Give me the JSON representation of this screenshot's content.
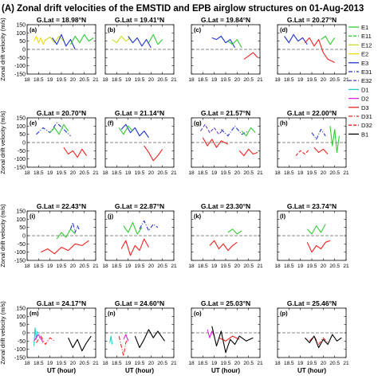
{
  "figure": {
    "title": "(A) Zonal drift velocities of the EMSTID and EPB airglow structures on 01-Aug-2013",
    "ylabel": "Zonal drift velocity (m/s)",
    "xlabel": "UT (hour)"
  },
  "legend": {
    "entries": [
      {
        "label": "E1",
        "color": "#33cc33",
        "dash": "solid"
      },
      {
        "label": "E11",
        "color": "#33cc33",
        "dash": "dash"
      },
      {
        "label": "E12",
        "color": "#ccdd22",
        "dash": "solid"
      },
      {
        "label": "E2",
        "color": "#eedd00",
        "dash": "solid"
      },
      {
        "label": "E3",
        "color": "#2233cc",
        "dash": "solid"
      },
      {
        "label": "E31",
        "color": "#2233cc",
        "dash": "dashdot"
      },
      {
        "label": "E32",
        "color": "#6644cc",
        "dash": "dash"
      },
      {
        "label": "D1",
        "color": "#22cccc",
        "dash": "solid"
      },
      {
        "label": "D2",
        "color": "#dd22dd",
        "dash": "solid"
      },
      {
        "label": "D3",
        "color": "#ee2222",
        "dash": "solid"
      },
      {
        "label": "D31",
        "color": "#ee2222",
        "dash": "dashdot"
      },
      {
        "label": "D32",
        "color": "#ee2222",
        "dash": "dash"
      },
      {
        "label": "B1",
        "color": "#000000",
        "dash": "solid"
      }
    ]
  },
  "chart_data": {
    "type": "line",
    "xlim": [
      18,
      21
    ],
    "ylim": [
      -150,
      150
    ],
    "xticks": [
      "18",
      "18.5",
      "19",
      "19.5",
      "20",
      "20.5",
      "21"
    ],
    "yticks": [
      "-150",
      "-100",
      "-50",
      "0",
      "50",
      "100",
      "150"
    ],
    "zero_line": "dashed",
    "panels": [
      {
        "tag": "(a)",
        "glat": "G.Lat = 18.98°N",
        "series": [
          {
            "name": "E2",
            "x": [
              18.3,
              18.4,
              18.5,
              18.6,
              18.7,
              18.8
            ],
            "y": [
              50,
              80,
              40,
              70,
              30,
              60
            ]
          },
          {
            "name": "E12",
            "x": [
              18.8,
              19.0,
              19.2,
              19.4,
              19.6
            ],
            "y": [
              55,
              75,
              40,
              80,
              50
            ]
          },
          {
            "name": "E3",
            "x": [
              19.1,
              19.3,
              19.5,
              19.7,
              19.9,
              20.1
            ],
            "y": [
              70,
              30,
              90,
              20,
              60,
              0
            ]
          },
          {
            "name": "E1",
            "x": [
              19.9,
              20.1,
              20.3,
              20.5,
              20.7,
              20.9
            ],
            "y": [
              30,
              80,
              40,
              90,
              50,
              70
            ]
          }
        ]
      },
      {
        "tag": "(b)",
        "glat": "G.Lat = 19.41°N",
        "series": [
          {
            "name": "E12",
            "x": [
              18.3,
              18.5,
              18.7,
              18.9,
              19.1
            ],
            "y": [
              60,
              40,
              80,
              50,
              70
            ]
          },
          {
            "name": "E3",
            "x": [
              19.0,
              19.2,
              19.4,
              19.6,
              19.8,
              20.0
            ],
            "y": [
              80,
              40,
              70,
              20,
              60,
              10
            ]
          },
          {
            "name": "E1",
            "x": [
              19.9,
              20.1,
              20.3,
              20.5
            ],
            "y": [
              40,
              90,
              30,
              60
            ]
          }
        ]
      },
      {
        "tag": "(c)",
        "glat": "G.Lat = 19.84°N",
        "series": [
          {
            "name": "E3",
            "x": [
              18.9,
              19.1,
              19.3,
              19.5,
              19.7,
              19.9
            ],
            "y": [
              70,
              60,
              80,
              40,
              60,
              10
            ]
          },
          {
            "name": "E1",
            "x": [
              19.6,
              19.8,
              20.0,
              20.2
            ],
            "y": [
              50,
              30,
              60,
              10
            ]
          },
          {
            "name": "D3",
            "x": [
              20.3,
              20.5,
              20.7,
              20.9
            ],
            "y": [
              -60,
              -40,
              -20,
              -50
            ]
          }
        ]
      },
      {
        "tag": "(d)",
        "glat": "G.Lat = 20.27°N",
        "series": [
          {
            "name": "E3",
            "x": [
              18.3,
              18.5,
              18.7,
              18.9,
              19.1,
              19.3
            ],
            "y": [
              80,
              40,
              90,
              50,
              70,
              30
            ]
          },
          {
            "name": "D3",
            "x": [
              19.2,
              19.4,
              19.6,
              19.8,
              20.0,
              20.2,
              20.5
            ],
            "y": [
              40,
              70,
              20,
              60,
              -20,
              -60,
              -80
            ]
          },
          {
            "name": "E1",
            "x": [
              19.9,
              20.1,
              20.3,
              20.5
            ],
            "y": [
              60,
              80,
              30,
              70
            ]
          }
        ]
      },
      {
        "tag": "(e)",
        "glat": "G.Lat = 20.70°N",
        "series": [
          {
            "name": "E31",
            "x": [
              18.4,
              18.7,
              19.0,
              19.3,
              19.6,
              19.9
            ],
            "y": [
              50,
              90,
              60,
              120,
              80,
              40
            ]
          },
          {
            "name": "E1",
            "x": [
              19.0,
              19.2,
              19.4,
              19.6,
              19.8
            ],
            "y": [
              60,
              90,
              50,
              110,
              70
            ]
          },
          {
            "name": "D3",
            "x": [
              19.6,
              19.8,
              20.0,
              20.2,
              20.4,
              20.6
            ],
            "y": [
              -30,
              -70,
              -50,
              -90,
              -40,
              -80
            ]
          }
        ]
      },
      {
        "tag": "(f)",
        "glat": "G.Lat = 21.14°N",
        "series": [
          {
            "name": "E3",
            "x": [
              18.7,
              18.9,
              19.1,
              19.3,
              19.5,
              19.7,
              19.9
            ],
            "y": [
              80,
              110,
              60,
              90,
              40,
              70,
              30
            ]
          },
          {
            "name": "E1",
            "x": [
              18.6,
              18.8,
              19.0,
              19.2
            ],
            "y": [
              90,
              50,
              100,
              70
            ]
          },
          {
            "name": "D3",
            "x": [
              19.7,
              19.9,
              20.1,
              20.3,
              20.5
            ],
            "y": [
              -20,
              -60,
              -110,
              -80,
              -40
            ]
          }
        ]
      },
      {
        "tag": "(g)",
        "glat": "G.Lat = 21.57°N",
        "series": [
          {
            "name": "E32",
            "x": [
              18.4,
              18.6,
              18.8,
              19.0,
              19.2,
              19.4
            ],
            "y": [
              70,
              110,
              60,
              90,
              50,
              80
            ]
          },
          {
            "name": "E31",
            "x": [
              19.3,
              19.6,
              19.9,
              20.2,
              20.5
            ],
            "y": [
              80,
              40,
              100,
              50,
              70
            ]
          },
          {
            "name": "D3",
            "x": [
              18.5,
              18.7,
              18.9,
              19.1,
              19.3,
              19.6
            ],
            "y": [
              30,
              -20,
              20,
              -30,
              10,
              -10
            ]
          },
          {
            "name": "E1",
            "x": [
              20.2,
              20.4,
              20.6,
              20.8
            ],
            "y": [
              70,
              40,
              90,
              60
            ]
          },
          {
            "name": "D3",
            "x": [
              20.1,
              20.3,
              20.5,
              20.7,
              20.9
            ],
            "y": [
              -50,
              -80,
              -40,
              -70,
              -60
            ]
          }
        ]
      },
      {
        "tag": "(h)",
        "glat": "G.Lat = 22.00°N",
        "series": [
          {
            "name": "E31",
            "x": [
              19.5,
              19.7,
              19.9,
              20.1
            ],
            "y": [
              60,
              20,
              80,
              40
            ]
          },
          {
            "name": "D32",
            "x": [
              18.8,
              19.0,
              19.2,
              19.4
            ],
            "y": [
              -80,
              -50,
              -70,
              -40
            ]
          },
          {
            "name": "D3",
            "x": [
              19.6,
              19.8,
              20.0,
              20.2
            ],
            "y": [
              -30,
              -60,
              -40,
              -70
            ]
          },
          {
            "name": "E1",
            "x": [
              20.3,
              20.4,
              20.5,
              20.6,
              20.7
            ],
            "y": [
              100,
              -20,
              80,
              -60,
              40
            ]
          }
        ]
      },
      {
        "tag": "(i)",
        "glat": "G.Lat = 22.43°N",
        "series": [
          {
            "name": "E1",
            "x": [
              19.3,
              19.5,
              19.7,
              19.9,
              20.1
            ],
            "y": [
              -20,
              20,
              -10,
              40,
              10
            ]
          },
          {
            "name": "E31",
            "x": [
              19.9,
              20.0,
              20.1,
              20.2,
              20.3
            ],
            "y": [
              40,
              80,
              20,
              60,
              30
            ]
          },
          {
            "name": "D3",
            "x": [
              18.6,
              18.9,
              19.2,
              19.5,
              19.8,
              20.1,
              20.4,
              20.7
            ],
            "y": [
              -100,
              -80,
              -110,
              -70,
              -90,
              -50,
              -60,
              -30
            ]
          }
        ]
      },
      {
        "tag": "(j)",
        "glat": "G.Lat = 22.87°N",
        "series": [
          {
            "name": "E1",
            "x": [
              18.8,
              19.0,
              19.2,
              19.4,
              19.6
            ],
            "y": [
              60,
              20,
              80,
              10,
              50
            ]
          },
          {
            "name": "E31",
            "x": [
              19.5,
              19.7,
              19.9,
              20.1,
              20.3
            ],
            "y": [
              40,
              90,
              30,
              70,
              50
            ]
          },
          {
            "name": "D3",
            "x": [
              18.7,
              18.9,
              19.1,
              19.3,
              19.5,
              19.7,
              19.9
            ],
            "y": [
              -80,
              -30,
              -120,
              -60,
              -90,
              -20,
              -70
            ]
          }
        ]
      },
      {
        "tag": "(k)",
        "glat": "G.Lat = 23.30°N",
        "series": [
          {
            "name": "E1",
            "x": [
              19.6,
              19.8,
              20.0,
              20.2
            ],
            "y": [
              20,
              40,
              10,
              30
            ]
          },
          {
            "name": "D3",
            "x": [
              18.8,
              19.0,
              19.2,
              19.4,
              19.6,
              19.8,
              20.0
            ],
            "y": [
              -60,
              -30,
              -80,
              -50,
              -90,
              -60,
              -40
            ]
          }
        ]
      },
      {
        "tag": "(l)",
        "glat": "G.Lat = 23.74°N",
        "series": [
          {
            "name": "E1",
            "x": [
              19.3,
              19.5,
              19.7,
              19.9,
              20.1
            ],
            "y": [
              40,
              10,
              60,
              20,
              70
            ]
          },
          {
            "name": "D3",
            "x": [
              19.3,
              19.5,
              19.7,
              19.9,
              20.1,
              20.3
            ],
            "y": [
              -40,
              -100,
              -60,
              -80,
              -40,
              -30
            ]
          }
        ]
      },
      {
        "tag": "(m)",
        "glat": "G.Lat = 24.17°N",
        "series": [
          {
            "name": "D1",
            "x": [
              18.3,
              18.35,
              18.4,
              18.45
            ],
            "y": [
              -80,
              30,
              -40,
              10
            ]
          },
          {
            "name": "D31",
            "x": [
              18.4,
              18.6,
              18.8,
              19.0,
              19.2
            ],
            "y": [
              -60,
              -20,
              -70,
              -30,
              -50
            ]
          },
          {
            "name": "D2",
            "x": [
              18.3,
              18.5,
              18.7
            ],
            "y": [
              -50,
              -10,
              -60
            ]
          },
          {
            "name": "B1",
            "x": [
              19.8,
              20.0,
              20.2,
              20.4,
              20.6,
              20.8
            ],
            "y": [
              -30,
              -90,
              -40,
              -110,
              -60,
              -20
            ]
          }
        ]
      },
      {
        "tag": "(n)",
        "glat": "G.Lat = 24.60°N",
        "series": [
          {
            "name": "D1",
            "x": [
              18.2,
              18.25,
              18.3
            ],
            "y": [
              -60,
              -20,
              -70
            ]
          },
          {
            "name": "D31",
            "x": [
              18.6,
              18.7,
              18.8,
              18.9,
              19.0
            ],
            "y": [
              -20,
              -80,
              -140,
              -60,
              -30
            ]
          },
          {
            "name": "D2",
            "x": [
              18.8,
              18.9,
              19.0
            ],
            "y": [
              -40,
              -10,
              -50
            ]
          },
          {
            "name": "B1",
            "x": [
              19.3,
              19.5,
              19.7,
              19.9,
              20.1,
              20.3,
              20.6
            ],
            "y": [
              -20,
              -90,
              -40,
              20,
              -30,
              10,
              -50
            ]
          }
        ]
      },
      {
        "tag": "(o)",
        "glat": "G.Lat = 25.03°N",
        "series": [
          {
            "name": "D2",
            "x": [
              18.7,
              18.8,
              18.9,
              19.0
            ],
            "y": [
              20,
              -30,
              10,
              -20
            ]
          },
          {
            "name": "D3",
            "x": [
              19.2,
              19.5,
              19.8,
              20.1
            ],
            "y": [
              -30,
              -50,
              -20,
              -40
            ]
          },
          {
            "name": "B1",
            "x": [
              18.9,
              19.1,
              19.3,
              19.5,
              19.7,
              19.9,
              20.1,
              20.4,
              20.7
            ],
            "y": [
              40,
              -80,
              10,
              -120,
              -40,
              -70,
              -20,
              -50,
              -30
            ]
          }
        ]
      },
      {
        "tag": "(p)",
        "glat": "G.Lat = 25.46°N",
        "series": [
          {
            "name": "D31",
            "x": [
              19.4,
              19.6,
              19.8,
              20.0,
              20.2
            ],
            "y": [
              -50,
              -20,
              -70,
              -30,
              -60
            ]
          },
          {
            "name": "B1",
            "x": [
              19.2,
              19.4,
              19.6,
              19.8,
              20.0,
              20.2,
              20.4,
              20.6,
              20.8
            ],
            "y": [
              -30,
              -60,
              -20,
              -90,
              -40,
              -70,
              -10,
              -50,
              -30
            ]
          }
        ]
      }
    ]
  }
}
